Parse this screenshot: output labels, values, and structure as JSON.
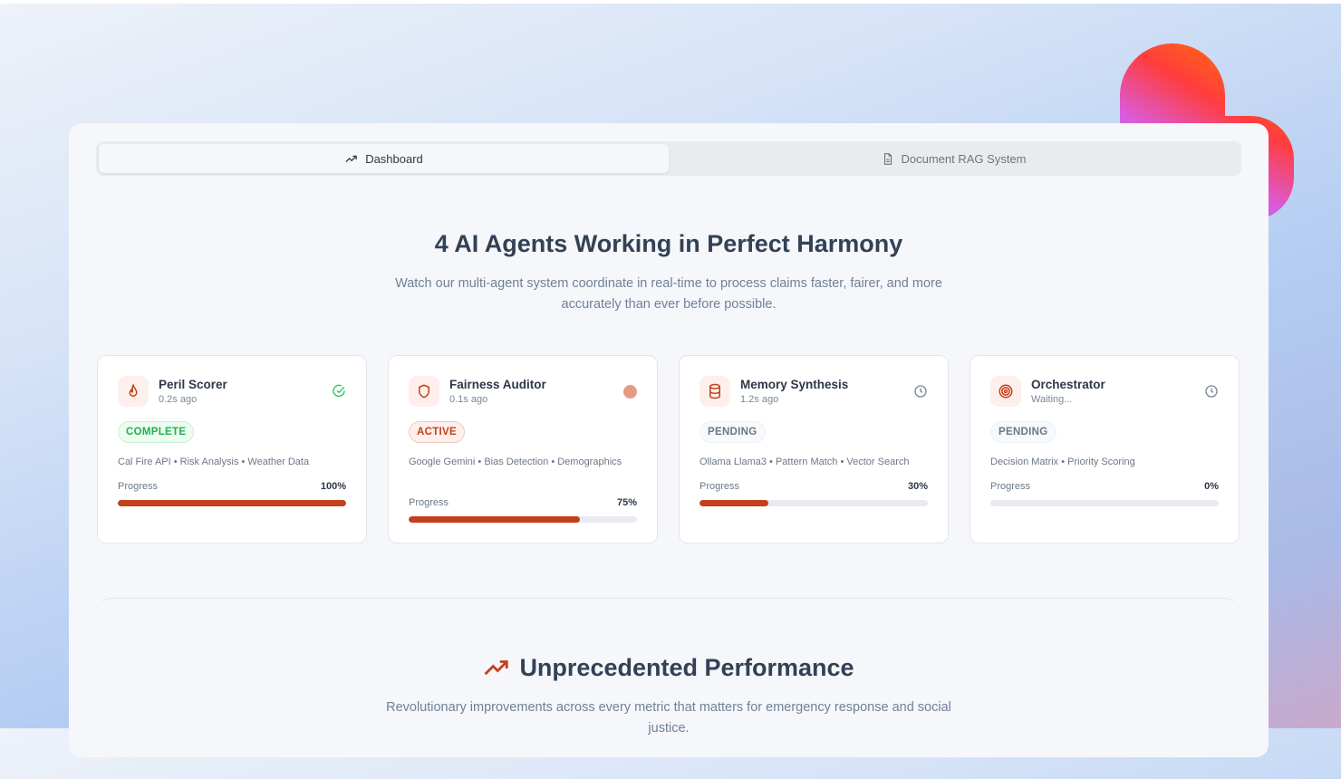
{
  "tabs": [
    {
      "label": "Dashboard",
      "icon": "trending-up-icon",
      "active": true
    },
    {
      "label": "Document RAG System",
      "icon": "file-text-icon",
      "active": false
    }
  ],
  "hero": {
    "title": "4 AI Agents Working in Perfect Harmony",
    "subtitle": "Watch our multi-agent system coordinate in real-time to process claims faster, fairer, and more accurately than ever before possible."
  },
  "agents": [
    {
      "name": "Peril Scorer",
      "time": "0.2s ago",
      "icon": "flame-icon",
      "status": "COMPLETE",
      "status_icon": "check-circle-icon",
      "tags": "Cal Fire API • Risk Analysis • Weather Data",
      "progress_label": "Progress",
      "progress": 100,
      "progress_text": "100%"
    },
    {
      "name": "Fairness Auditor",
      "time": "0.1s ago",
      "icon": "shield-icon",
      "status": "ACTIVE",
      "status_icon": "active-dot-icon",
      "tags": "Google Gemini • Bias Detection • Demographics",
      "progress_label": "Progress",
      "progress": 75,
      "progress_text": "75%"
    },
    {
      "name": "Memory Synthesis",
      "time": "1.2s ago",
      "icon": "database-icon",
      "status": "PENDING",
      "status_icon": "clock-icon",
      "tags": "Ollama Llama3 • Pattern Match • Vector Search",
      "progress_label": "Progress",
      "progress": 30,
      "progress_text": "30%"
    },
    {
      "name": "Orchestrator",
      "time": "Waiting...",
      "icon": "target-icon",
      "status": "PENDING",
      "status_icon": "clock-icon",
      "tags": "Decision Matrix • Priority Scoring",
      "progress_label": "Progress",
      "progress": 0,
      "progress_text": "0%"
    }
  ],
  "performance": {
    "title": "Unprecedented Performance",
    "subtitle": "Revolutionary improvements across every metric that matters for emergency response and social justice."
  },
  "colors": {
    "accent": "#c2401b",
    "complete": "#22c55e",
    "active_dot": "#e59a85"
  }
}
